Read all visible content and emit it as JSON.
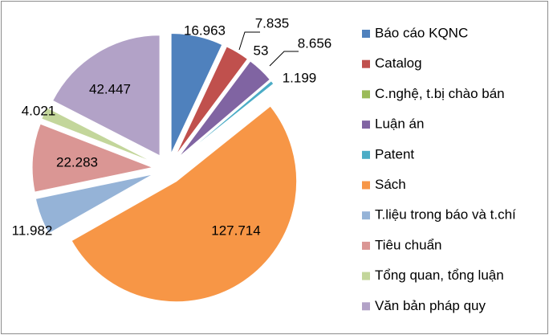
{
  "chart_data": {
    "type": "pie",
    "title": "",
    "exploded": true,
    "legend_position": "right",
    "slices": [
      {
        "name": "Báo cáo KQNC",
        "value": 16963,
        "label": "16.963",
        "color": "#4f81bd"
      },
      {
        "name": "Catalog",
        "value": 7835,
        "label": "7.835",
        "color": "#c0504d"
      },
      {
        "name": "C.nghệ, t.bị chào bán",
        "value": 53,
        "label": "53",
        "color": "#9bbb59"
      },
      {
        "name": "Luận án",
        "value": 8656,
        "label": "8.656",
        "color": "#8064a2"
      },
      {
        "name": "Patent",
        "value": 1199,
        "label": "1.199",
        "color": "#4bacc6"
      },
      {
        "name": "Sách",
        "value": 127714,
        "label": "127.714",
        "color": "#f79646"
      },
      {
        "name": "T.liệu trong báo và t.chí",
        "value": 11982,
        "label": "11.982",
        "color": "#95b3d7"
      },
      {
        "name": "Tiêu chuẩn",
        "value": 22283,
        "label": "22.283",
        "color": "#da9694"
      },
      {
        "name": "Tổng quan, tổng luận",
        "value": 4021,
        "label": "4.021",
        "color": "#c3d69b"
      },
      {
        "name": "Văn bản pháp quy",
        "value": 42447,
        "label": "42.447",
        "color": "#b2a2c7"
      }
    ]
  }
}
